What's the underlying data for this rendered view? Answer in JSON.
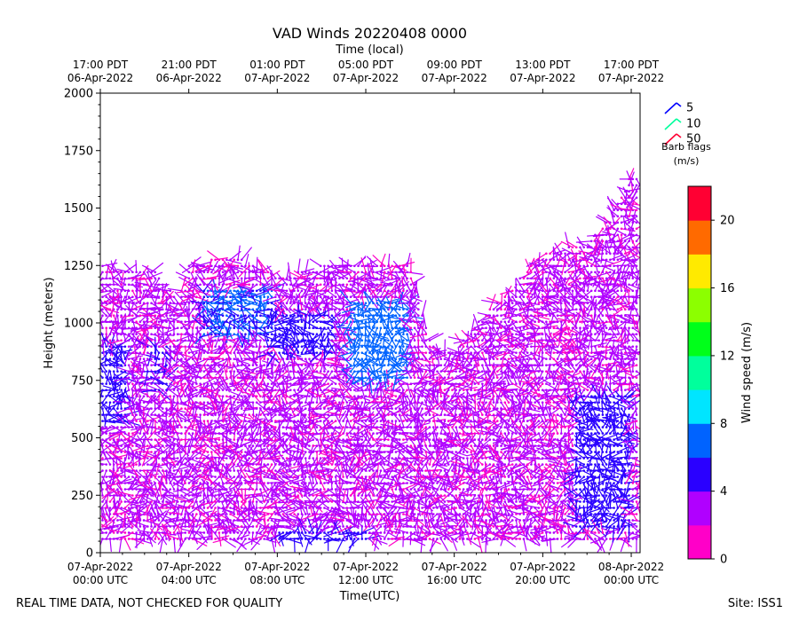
{
  "chart_data": {
    "type": "wind-barb-profile",
    "title": "VAD Winds 20220408 0000",
    "top_axis_label": "Time (local)",
    "xlabel": "Time(UTC)",
    "ylabel": "Height (meters)",
    "ylim": [
      0,
      2000
    ],
    "yticks": [
      0,
      250,
      500,
      750,
      1000,
      1250,
      1500,
      1750,
      2000
    ],
    "xlim_hours": [
      0,
      24.4
    ],
    "xticks_utc": [
      {
        "h": 0,
        "line1": "07-Apr-2022",
        "line2": "00:00 UTC"
      },
      {
        "h": 4,
        "line1": "07-Apr-2022",
        "line2": "04:00 UTC"
      },
      {
        "h": 8,
        "line1": "07-Apr-2022",
        "line2": "08:00 UTC"
      },
      {
        "h": 12,
        "line1": "07-Apr-2022",
        "line2": "12:00 UTC"
      },
      {
        "h": 16,
        "line1": "07-Apr-2022",
        "line2": "16:00 UTC"
      },
      {
        "h": 20,
        "line1": "07-Apr-2022",
        "line2": "20:00 UTC"
      },
      {
        "h": 24,
        "line1": "08-Apr-2022",
        "line2": "00:00 UTC"
      }
    ],
    "xticks_local": [
      {
        "h": 0,
        "line1": "17:00 PDT",
        "line2": "06-Apr-2022"
      },
      {
        "h": 4,
        "line1": "21:00 PDT",
        "line2": "06-Apr-2022"
      },
      {
        "h": 8,
        "line1": "01:00 PDT",
        "line2": "07-Apr-2022"
      },
      {
        "h": 12,
        "line1": "05:00 PDT",
        "line2": "07-Apr-2022"
      },
      {
        "h": 16,
        "line1": "09:00 PDT",
        "line2": "07-Apr-2022"
      },
      {
        "h": 20,
        "line1": "13:00 PDT",
        "line2": "07-Apr-2022"
      },
      {
        "h": 24,
        "line1": "17:00 PDT",
        "line2": "07-Apr-2022"
      }
    ],
    "data_top_m": [
      {
        "h": 0,
        "top": 1250
      },
      {
        "h": 2.5,
        "top": 1230
      },
      {
        "h": 3.5,
        "top": 1100
      },
      {
        "h": 4,
        "top": 1250
      },
      {
        "h": 6,
        "top": 1300
      },
      {
        "h": 8,
        "top": 1200
      },
      {
        "h": 10,
        "top": 1250
      },
      {
        "h": 12,
        "top": 1250
      },
      {
        "h": 14,
        "top": 1250
      },
      {
        "h": 15,
        "top": 900
      },
      {
        "h": 16,
        "top": 880
      },
      {
        "h": 17,
        "top": 1000
      },
      {
        "h": 18,
        "top": 1100
      },
      {
        "h": 19,
        "top": 1200
      },
      {
        "h": 20,
        "top": 1300
      },
      {
        "h": 22,
        "top": 1350
      },
      {
        "h": 23,
        "top": 1450
      },
      {
        "h": 24,
        "top": 1650
      }
    ],
    "speed_regions": [
      {
        "h": [
          0.1,
          1.2
        ],
        "z": [
          550,
          900
        ],
        "speed": 5
      },
      {
        "h": [
          4.6,
          7.8
        ],
        "z": [
          950,
          1150
        ],
        "speed": 6
      },
      {
        "h": [
          7.5,
          10.5
        ],
        "z": [
          850,
          1050
        ],
        "speed": 5
      },
      {
        "h": [
          11.3,
          14.0
        ],
        "z": [
          750,
          1100
        ],
        "speed": 7
      },
      {
        "h": [
          8.0,
          12.0
        ],
        "z": [
          40,
          100
        ],
        "speed": 5
      },
      {
        "h": [
          21.5,
          24.0
        ],
        "z": [
          100,
          700
        ],
        "speed": 5
      },
      {
        "h": [
          2.0,
          3.0
        ],
        "z": [
          700,
          900
        ],
        "speed": 4
      }
    ],
    "legend": {
      "items": [
        {
          "label": "5",
          "color": "#0000ff"
        },
        {
          "label": "10",
          "color": "#00ff9c"
        },
        {
          "label": "50",
          "color": "#ff0033"
        }
      ],
      "title_line1": "Barb flags",
      "title_line2": "(m/s)"
    },
    "colorbar": {
      "label": "Wind speed (m/s)",
      "range": [
        0,
        22
      ],
      "ticks": [
        0,
        4,
        8,
        12,
        16,
        20
      ],
      "colors": [
        "#ff00c8",
        "#b000ff",
        "#2a00ff",
        "#0063ff",
        "#00e5ff",
        "#00ff9c",
        "#00ff1a",
        "#8cff00",
        "#ffea00",
        "#ff6a00",
        "#ff0033"
      ]
    }
  },
  "footer": {
    "left": "REAL TIME DATA, NOT CHECKED FOR QUALITY",
    "right": "Site: ISS1"
  }
}
